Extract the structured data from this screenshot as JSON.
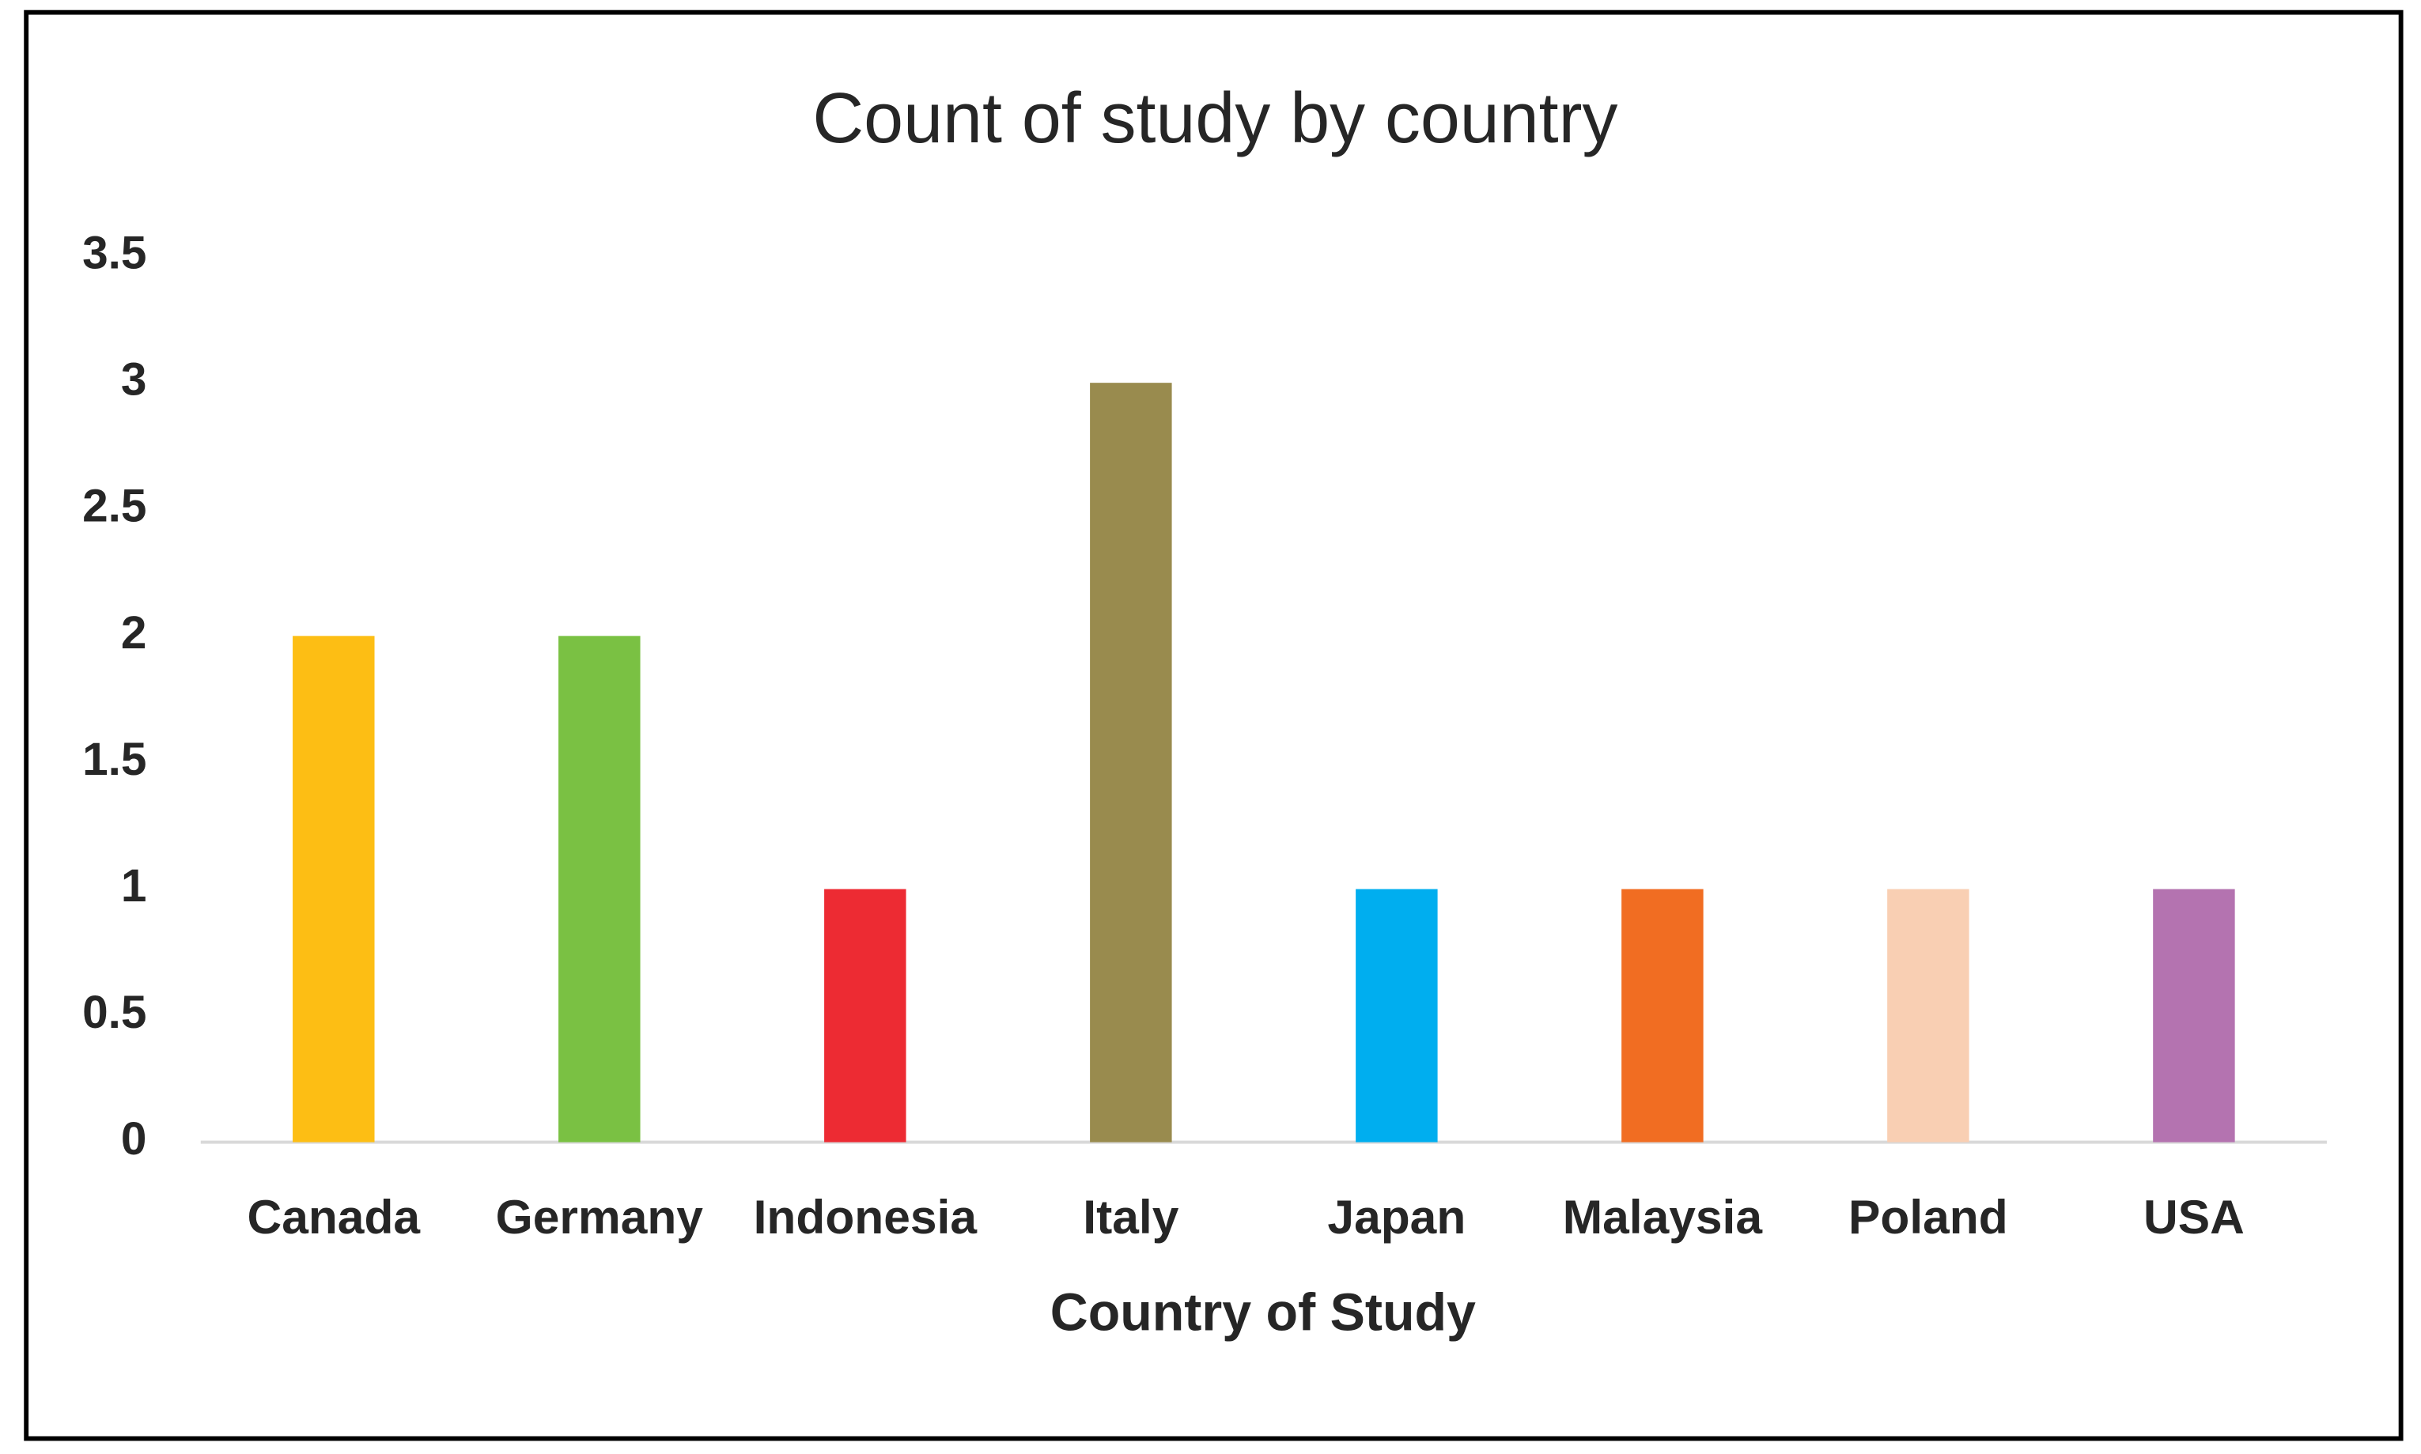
{
  "chart_data": {
    "type": "bar",
    "title": "Count of study by country",
    "x_label": "Country of Study",
    "categories": [
      "Canada",
      "Germany",
      "Indonesia",
      "Italy",
      "Japan",
      "Malaysia",
      "Poland",
      "USA"
    ],
    "values": [
      2,
      2,
      1,
      3,
      1,
      1,
      1,
      1
    ],
    "colors": [
      "#fdbe14",
      "#7ac143",
      "#ed2b33",
      "#998b4e",
      "#00aeef",
      "#f16d22",
      "#f9cfb3",
      "#b473b0"
    ],
    "ylim": [
      0,
      3.5
    ],
    "yticks": [
      0,
      0.5,
      1,
      1.5,
      2,
      2.5,
      3,
      3.5
    ],
    "grid": false
  }
}
